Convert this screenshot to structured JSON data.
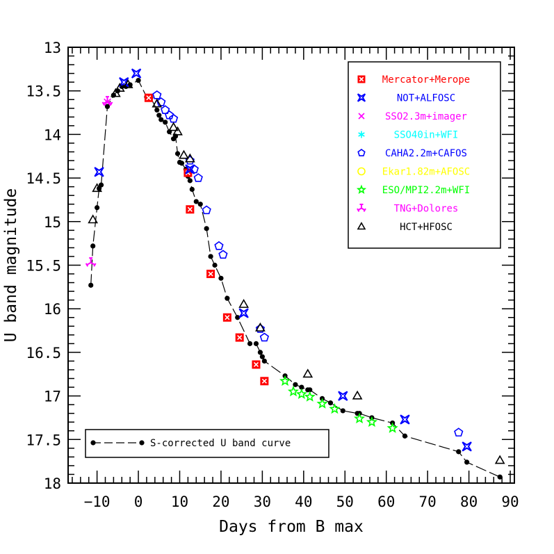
{
  "chart_data": {
    "type": "scatter",
    "title": "",
    "xlabel": "Days from B max",
    "ylabel": "U band magnitude",
    "xlim": [
      -17,
      91
    ],
    "ylim": [
      13,
      18
    ],
    "y_inverted": true,
    "xticks": [
      -10,
      0,
      10,
      20,
      30,
      40,
      50,
      60,
      70,
      80,
      90
    ],
    "yticks": [
      13,
      13.5,
      14,
      14.5,
      15,
      15.5,
      16,
      16.5,
      17,
      17.5,
      18
    ],
    "ytick_labels": [
      "13",
      "13.5",
      "14",
      "14.5",
      "15",
      "15.5",
      "16",
      "16.5",
      "17",
      "17.5",
      "18"
    ],
    "grid": false,
    "legend_position": "top-right",
    "series": [
      {
        "name": "Mercator+Merope",
        "color": "#ff0000",
        "marker": "boxed-x",
        "x": [
          2.5,
          12,
          12.5,
          17.5,
          21.5,
          24.5,
          28.5,
          30.5
        ],
        "y": [
          13.58,
          14.44,
          14.86,
          15.6,
          16.1,
          16.33,
          16.64,
          16.83
        ]
      },
      {
        "name": "NOT+ALFOSC",
        "color": "#0000ff",
        "marker": "star4",
        "x": [
          -9.5,
          -3.5,
          -0.5,
          12.5,
          25.5,
          49.5,
          64.5,
          79.5
        ],
        "y": [
          14.43,
          13.4,
          13.3,
          14.4,
          16.05,
          17.0,
          17.27,
          17.58
        ]
      },
      {
        "name": "SSO2.3m+imager",
        "color": "#ff00ff",
        "marker": "cross",
        "x": [
          -7.5
        ],
        "y": [
          13.63
        ]
      },
      {
        "name": "SSO40in+WFI",
        "color": "#00ffff",
        "marker": "asterisk",
        "x": [],
        "y": []
      },
      {
        "name": "CAHA2.2m+CAFOS",
        "color": "#0000ff",
        "marker": "pentagon",
        "x": [
          4.5,
          5.5,
          6.5,
          7.5,
          8.5,
          12.5,
          13.5,
          14.5,
          16.5,
          19.5,
          20.5,
          29.5,
          30.5,
          77.5
        ],
        "y": [
          13.55,
          13.63,
          13.72,
          13.78,
          13.82,
          14.3,
          14.4,
          14.5,
          14.87,
          15.28,
          15.38,
          16.23,
          16.33,
          17.42
        ]
      },
      {
        "name": "Ekar1.82m+AFOSC",
        "color": "#ffff00",
        "marker": "circle",
        "x": [],
        "y": []
      },
      {
        "name": "ESO/MPI2.2m+WFI",
        "color": "#00ff00",
        "marker": "star5",
        "x": [
          35.5,
          37.5,
          39.5,
          41.5,
          44.5,
          47.5,
          53.5,
          56.5,
          61.5
        ],
        "y": [
          16.83,
          16.95,
          16.98,
          17.01,
          17.09,
          17.15,
          17.26,
          17.3,
          17.37
        ]
      },
      {
        "name": "TNG+Dolores",
        "color": "#ff00ff",
        "marker": "tri3",
        "x": [
          -11.5,
          -7.5
        ],
        "y": [
          15.47,
          13.62
        ]
      },
      {
        "name": "HCT+HFOSC",
        "color": "#000000",
        "marker": "triangle",
        "x": [
          -11,
          -10,
          -5.5,
          -4.5,
          -2.5,
          4.5,
          8.5,
          9.5,
          11,
          12.5,
          25.5,
          29.5,
          41,
          53,
          87.5
        ],
        "y": [
          14.98,
          14.62,
          13.53,
          13.47,
          13.43,
          13.65,
          13.92,
          13.97,
          14.24,
          14.28,
          15.95,
          16.22,
          16.75,
          17.0,
          17.74
        ]
      }
    ],
    "curve": {
      "name": "S-corrected U band curve",
      "color": "#000000",
      "style": "long-dash with filled dots",
      "x": [
        -11.5,
        -11,
        -10,
        -9.5,
        -9,
        -7.5,
        -6,
        -5,
        -4,
        -3,
        -2,
        0,
        2,
        3,
        4.5,
        5,
        5.5,
        6.5,
        7.5,
        8.5,
        9,
        9.5,
        10,
        10.5,
        11.5,
        12,
        12.5,
        13,
        14,
        15,
        16.5,
        17.5,
        18.5,
        20,
        21.5,
        24,
        27,
        28.5,
        29.5,
        30,
        30.5,
        35.5,
        38,
        39.5,
        41,
        41.5,
        44.5,
        46.5,
        49.5,
        53,
        53.5,
        56.5,
        61.5,
        64.5,
        77.5,
        79.5,
        87.5
      ],
      "y": [
        15.73,
        15.28,
        14.84,
        14.62,
        14.58,
        13.68,
        13.55,
        13.5,
        13.45,
        13.45,
        13.43,
        13.38,
        13.57,
        13.58,
        13.72,
        13.78,
        13.83,
        13.86,
        13.97,
        14.05,
        14.02,
        14.22,
        14.32,
        14.33,
        14.4,
        14.48,
        14.53,
        14.63,
        14.77,
        14.8,
        15.08,
        15.4,
        15.5,
        15.65,
        15.88,
        16.1,
        16.4,
        16.4,
        16.5,
        16.55,
        16.6,
        16.77,
        16.87,
        16.9,
        16.93,
        16.93,
        17.03,
        17.08,
        17.17,
        17.2,
        17.2,
        17.25,
        17.31,
        17.46,
        17.64,
        17.76,
        17.93
      ]
    }
  }
}
